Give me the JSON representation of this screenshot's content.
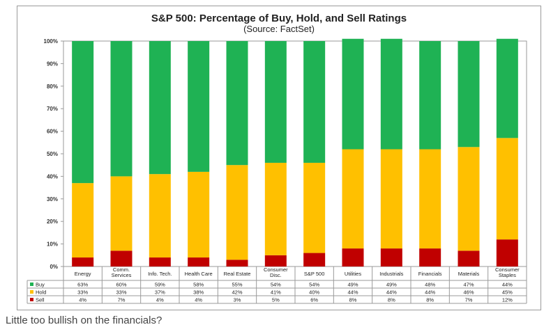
{
  "chart_data": {
    "type": "bar",
    "stacked": true,
    "title": "S&P 500: Percentage of Buy, Hold, and Sell Ratings",
    "subtitle": "(Source: FactSet)",
    "categories": [
      [
        "Energy"
      ],
      [
        "Comm.",
        "Services"
      ],
      [
        "Info. Tech."
      ],
      [
        "Health Care"
      ],
      [
        "Real Estate"
      ],
      [
        "Consumer",
        "Disc."
      ],
      [
        "S&P 500"
      ],
      [
        "Utilities"
      ],
      [
        "Industrials"
      ],
      [
        "Financials"
      ],
      [
        "Materials"
      ],
      [
        "Consumer",
        "Staples"
      ]
    ],
    "series": [
      {
        "name": "Buy",
        "color": "#1fb254",
        "values": [
          63,
          60,
          59,
          58,
          55,
          54,
          54,
          49,
          49,
          48,
          47,
          44
        ],
        "labels": [
          "63%",
          "60%",
          "59%",
          "58%",
          "55%",
          "54%",
          "54%",
          "49%",
          "49%",
          "48%",
          "47%",
          "44%"
        ]
      },
      {
        "name": "Hold",
        "color": "#ffc000",
        "values": [
          33,
          33,
          37,
          38,
          42,
          41,
          40,
          44,
          44,
          44,
          46,
          45
        ],
        "labels": [
          "33%",
          "33%",
          "37%",
          "38%",
          "42%",
          "41%",
          "40%",
          "44%",
          "44%",
          "44%",
          "46%",
          "45%"
        ]
      },
      {
        "name": "Sell",
        "color": "#c00000",
        "values": [
          4,
          7,
          4,
          4,
          3,
          5,
          6,
          8,
          8,
          8,
          7,
          12
        ],
        "labels": [
          "4%",
          "7%",
          "4%",
          "4%",
          "3%",
          "5%",
          "6%",
          "8%",
          "8%",
          "8%",
          "7%",
          "12%"
        ]
      }
    ],
    "ylim": [
      0,
      100
    ],
    "yticks": [
      "0%",
      "10%",
      "20%",
      "30%",
      "40%",
      "50%",
      "60%",
      "70%",
      "80%",
      "90%",
      "100%"
    ],
    "legend": "data table below chart"
  },
  "caption": "Little too bullish on the financials?"
}
